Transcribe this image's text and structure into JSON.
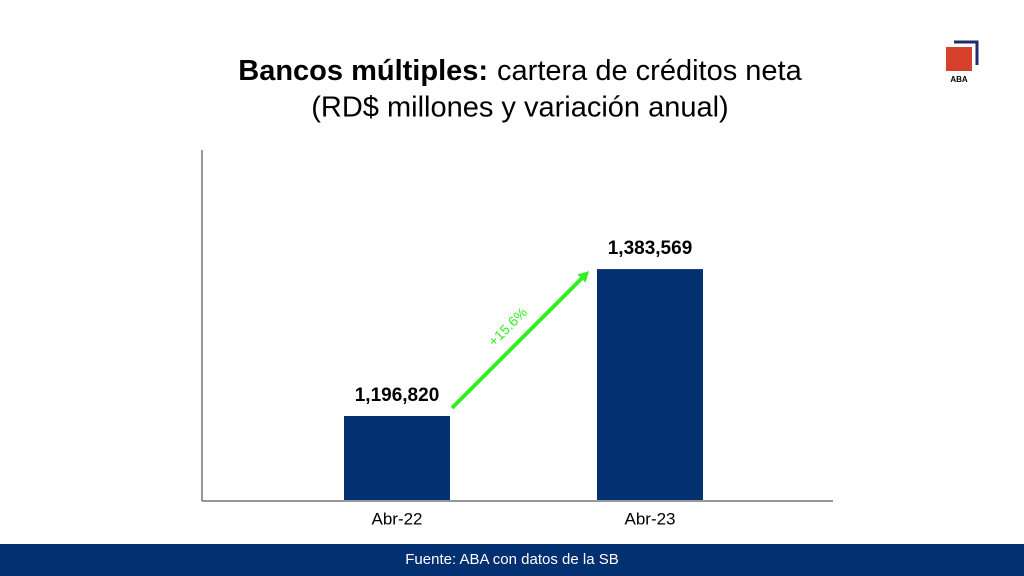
{
  "chart_data": {
    "type": "bar",
    "title_parts": [
      "Bancos múltiples:",
      "cartera de créditos neta"
    ],
    "subtitle": "(RD$ millones y variación anual)",
    "categories": [
      "Abr-22",
      "Abr-23"
    ],
    "values": [
      1196820,
      1383569
    ],
    "value_labels": [
      "1,196,820",
      "1,383,569"
    ],
    "color": "#033070",
    "ylim": [
      1090000,
      1535000
    ],
    "annotation": "+15.6%",
    "annotation_color": "#33ee22"
  },
  "source": "Fuente: ABA con datos de la SB",
  "logo": "ABA"
}
